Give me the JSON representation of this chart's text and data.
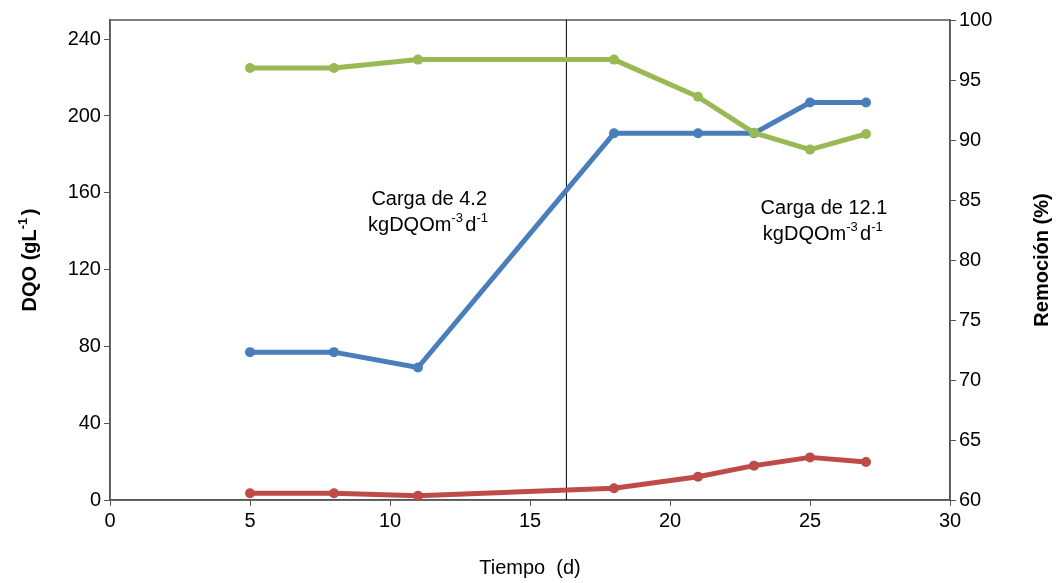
{
  "chart_data": {
    "type": "line",
    "xlabel": "Tiempo  (d)",
    "ylabel": "DQO (gL$^{-1}$)",
    "y2label": "Remoción (%)",
    "x": [
      5,
      8,
      11,
      18,
      21,
      23,
      25,
      27
    ],
    "series": [
      {
        "color": "#4a7ebb",
        "values": [
          77,
          77,
          69,
          191,
          191,
          191,
          207,
          207
        ]
      },
      {
        "color": "#be4b48",
        "values": [
          3.5,
          3.5,
          2.2,
          6.1,
          12.1,
          17.9,
          22.2,
          19.8
        ]
      },
      {
        "color": "#98b954",
        "axis": "y2",
        "values": [
          96,
          96,
          96.7,
          96.7,
          93.6,
          90.6,
          89.2,
          90.5
        ]
      }
    ],
    "xlim": [
      0,
      30
    ],
    "xticks": [
      0,
      5,
      10,
      15,
      20,
      25,
      30
    ],
    "ylim": [
      0,
      250
    ],
    "yticks": [
      0,
      40,
      80,
      120,
      160,
      200,
      240
    ],
    "y2lim": [
      60,
      100
    ],
    "y2ticks": [
      60,
      65,
      70,
      75,
      80,
      85,
      90,
      95,
      100
    ],
    "ref_lines": [
      {
        "axis": "x",
        "value": 16.3,
        "color": "#000000"
      }
    ],
    "annotations": [
      "Carga de 4.2 kgDQOm$^{-3}$d$^{-1}$",
      "Carga de 12.1 kgDQOm$^{-3}$d$^{-1}$"
    ],
    "marker": "circle",
    "line_style": "solid",
    "grid": false,
    "legend": false
  }
}
